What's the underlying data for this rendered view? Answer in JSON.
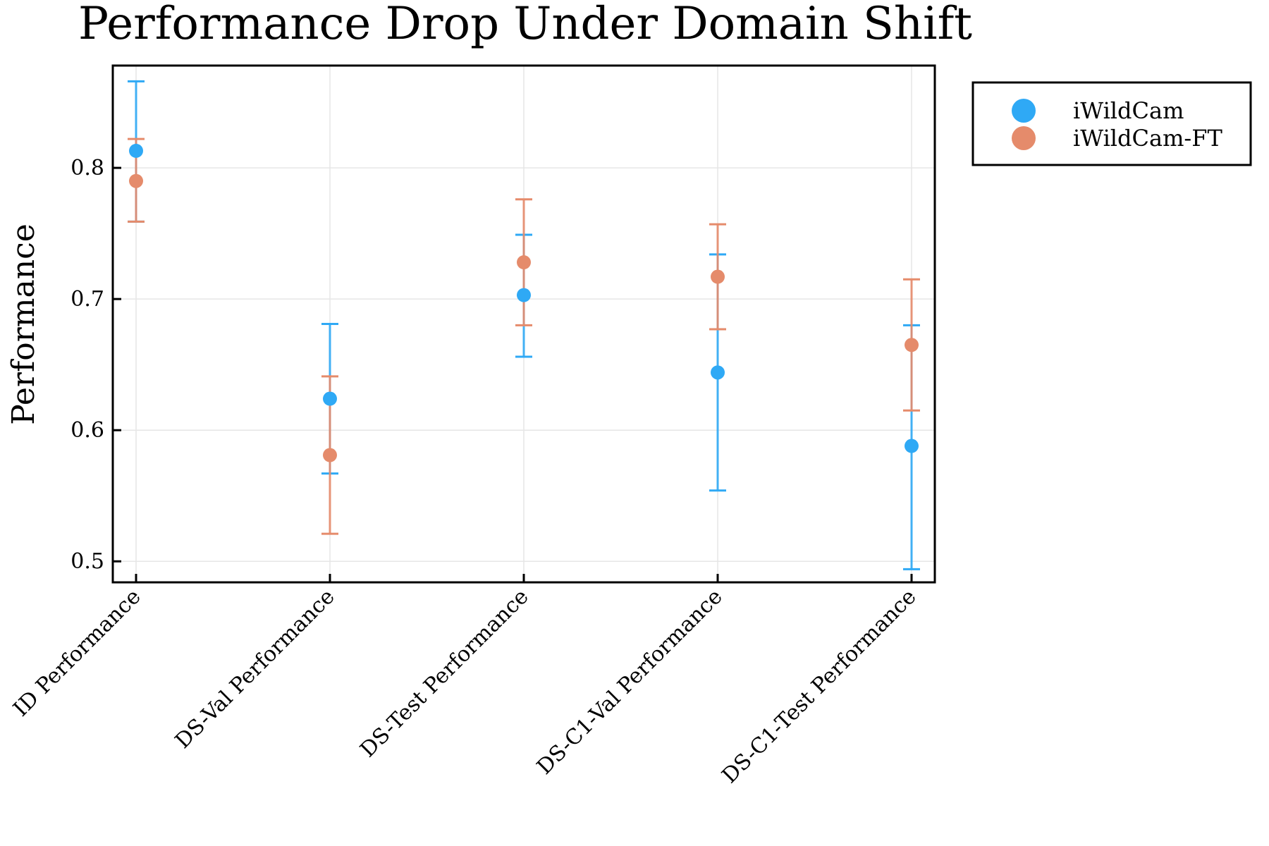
{
  "chart_data": {
    "type": "scatter",
    "title": "Performance Drop Under Domain Shift",
    "xlabel": "",
    "ylabel": "Performance",
    "categories": [
      "ID Performance",
      "DS-Val Performance",
      "DS-Test Performance",
      "DS-C1-Val Performance",
      "DS-C1-Test Performance"
    ],
    "ylim": [
      0.484,
      0.878
    ],
    "yticks": [
      "0.5",
      "0.6",
      "0.7",
      "0.8"
    ],
    "grid": true,
    "legend_position": "outer top-right",
    "series": [
      {
        "name": "iWildCam",
        "color": "#2fa9f5",
        "values": [
          0.813,
          0.624,
          0.703,
          0.644,
          0.588
        ],
        "err_low": [
          0.759,
          0.567,
          0.656,
          0.554,
          0.494
        ],
        "err_high": [
          0.866,
          0.681,
          0.749,
          0.734,
          0.68
        ]
      },
      {
        "name": "iWildCam-FT",
        "color": "#e58b6b",
        "values": [
          0.79,
          0.581,
          0.728,
          0.717,
          0.665
        ],
        "err_low": [
          0.759,
          0.521,
          0.68,
          0.677,
          0.615
        ],
        "err_high": [
          0.822,
          0.641,
          0.776,
          0.757,
          0.715
        ]
      }
    ]
  }
}
